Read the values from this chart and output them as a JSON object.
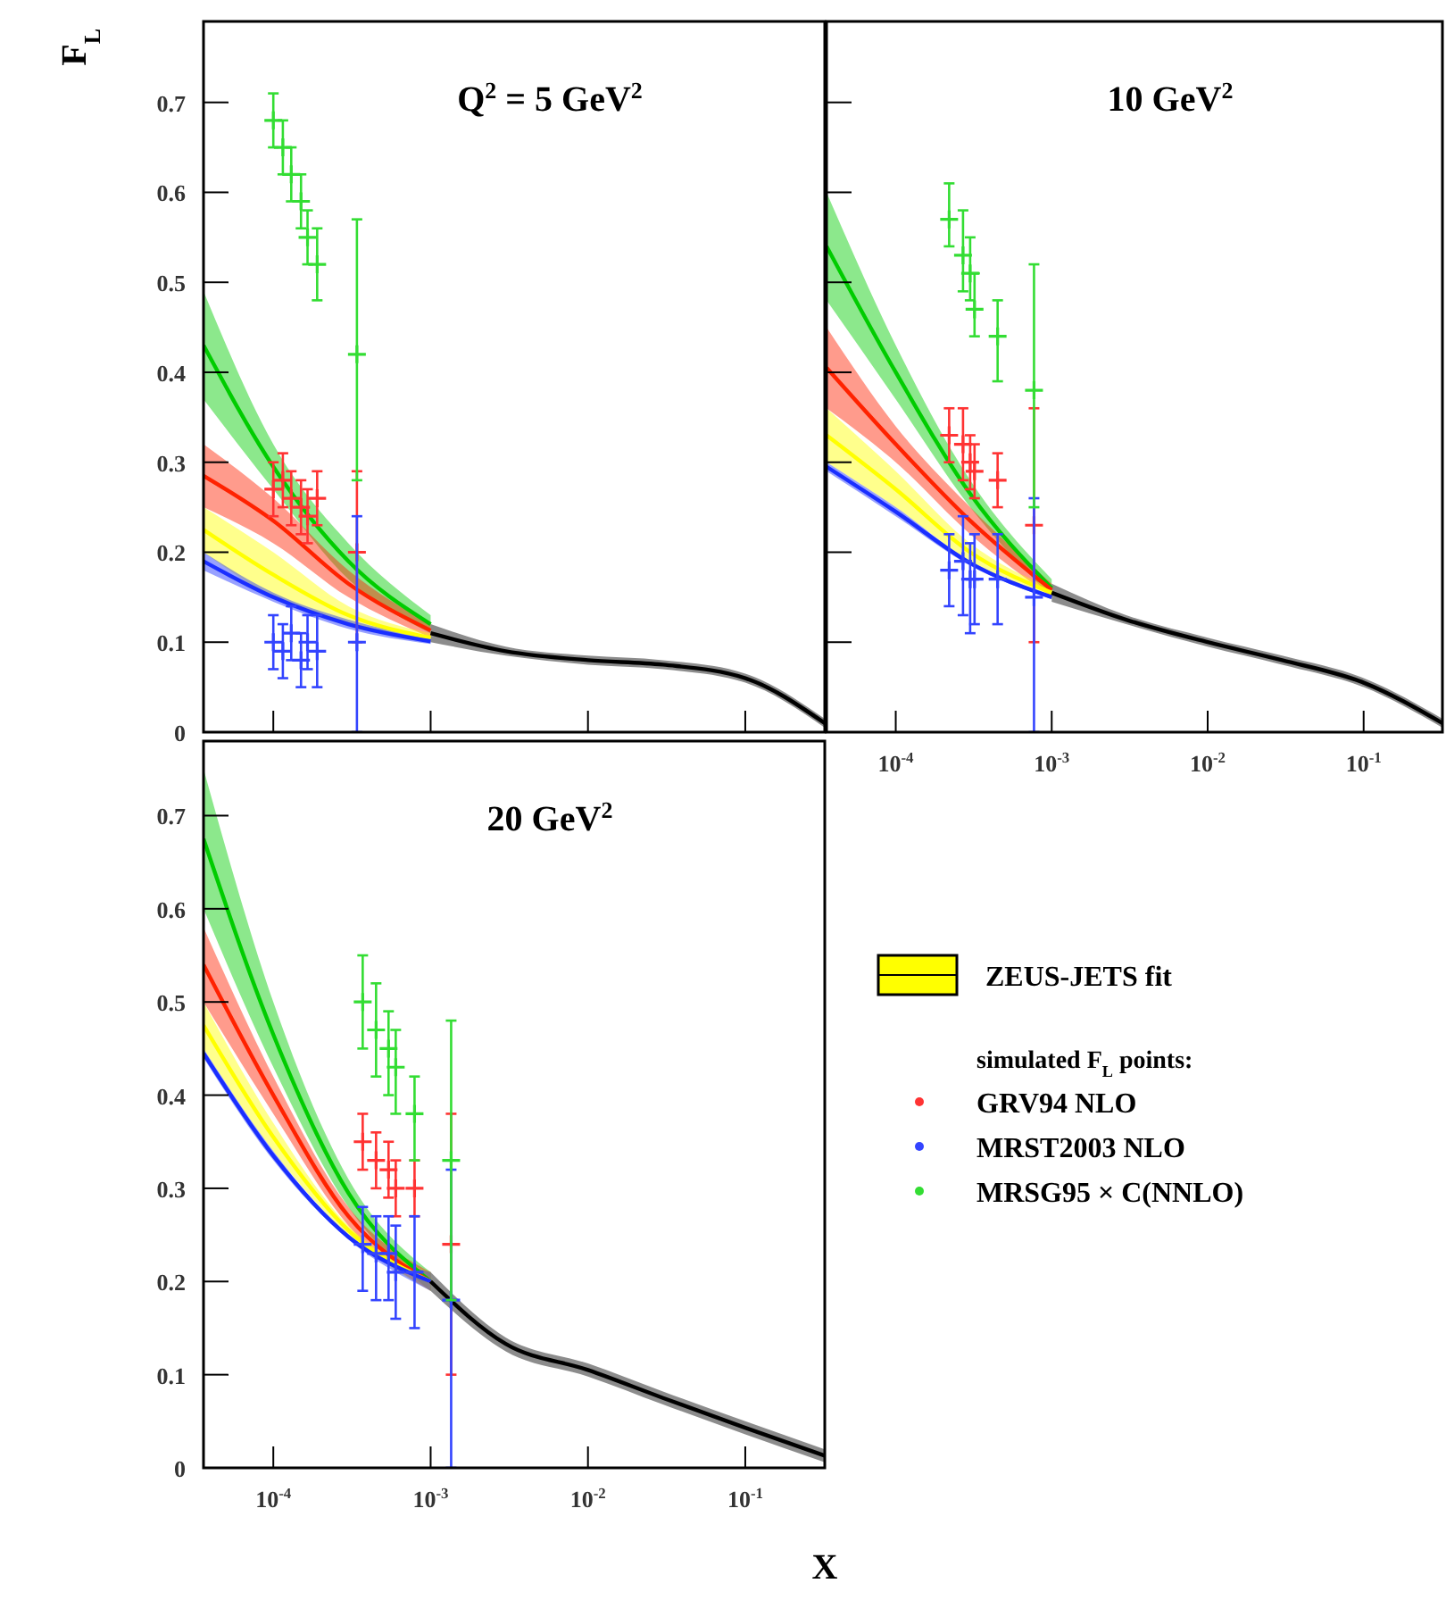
{
  "chart_data": [
    {
      "type": "line",
      "title": "Q$^{2}$ = 5 GeV$^{2}$",
      "ylabel": "F$_{L}$",
      "log": "x",
      "xlim": [
        3.6e-05,
        0.32
      ],
      "ylim": [
        0,
        0.79
      ],
      "xticks": [
        {
          "value": 0.0001,
          "label": null
        },
        {
          "value": 0.001,
          "label": null
        },
        {
          "value": 0.01,
          "label": null
        },
        {
          "value": 0.1,
          "label": null
        }
      ],
      "yticks": [
        0,
        0.1,
        0.2,
        0.3,
        0.4,
        0.5,
        0.6,
        0.7
      ],
      "tick_labels": "y",
      "series": [
        {
          "color": "#00cc00",
          "x": [
            3.6e-05,
            0.0001,
            0.0003,
            0.001
          ],
          "values": [
            0.43,
            0.295,
            0.19,
            0.12
          ],
          "lower": [
            0.37,
            0.27,
            0.17,
            0.11
          ],
          "upper": [
            0.49,
            0.32,
            0.21,
            0.13
          ]
        },
        {
          "color": "#ff2200",
          "x": [
            3.6e-05,
            0.0001,
            0.0003,
            0.001
          ],
          "values": [
            0.285,
            0.235,
            0.165,
            0.113
          ],
          "lower": [
            0.25,
            0.21,
            0.15,
            0.105
          ],
          "upper": [
            0.32,
            0.26,
            0.18,
            0.12
          ]
        },
        {
          "color": "#ffff00",
          "x": [
            3.6e-05,
            0.0001,
            0.0003,
            0.001
          ],
          "values": [
            0.225,
            0.175,
            0.13,
            0.105
          ],
          "lower": [
            0.2,
            0.15,
            0.12,
            0.1
          ],
          "upper": [
            0.25,
            0.2,
            0.14,
            0.11
          ]
        },
        {
          "color": "#1a2eff",
          "x": [
            3.6e-05,
            0.0001,
            0.0003,
            0.001
          ],
          "values": [
            0.19,
            0.15,
            0.12,
            0.101
          ],
          "lower": [
            0.18,
            0.145,
            0.115,
            0.098
          ],
          "upper": [
            0.2,
            0.155,
            0.125,
            0.104
          ]
        },
        {
          "color": "#000000",
          "x": [
            0.001,
            0.003,
            0.01,
            0.03,
            0.1,
            0.32
          ],
          "values": [
            0.11,
            0.09,
            0.08,
            0.075,
            0.06,
            0.01
          ],
          "lower": [
            0.1,
            0.085,
            0.075,
            0.07,
            0.055,
            0.005
          ],
          "upper": [
            0.12,
            0.095,
            0.085,
            0.08,
            0.065,
            0.015
          ]
        },
        {
          "type": "scatter",
          "marker": "cross",
          "color": "#ff3333",
          "x": [
            0.0001,
            0.000115,
            0.00013,
            0.00015,
            0.000165,
            0.00019,
            0.00034
          ],
          "values": [
            0.27,
            0.28,
            0.26,
            0.25,
            0.24,
            0.26,
            0.2
          ],
          "errors": [
            [
              0.24,
              0.3
            ],
            [
              0.25,
              0.31
            ],
            [
              0.23,
              0.29
            ],
            [
              0.22,
              0.28
            ],
            [
              0.21,
              0.27
            ],
            [
              0.23,
              0.29
            ],
            [
              0.1,
              0.29
            ]
          ]
        },
        {
          "type": "scatter",
          "marker": "cross",
          "color": "#3344ff",
          "x": [
            0.0001,
            0.000115,
            0.00013,
            0.00015,
            0.000165,
            0.00019,
            0.00034
          ],
          "values": [
            0.1,
            0.09,
            0.11,
            0.08,
            0.1,
            0.09,
            0.1
          ],
          "errors": [
            [
              0.07,
              0.13
            ],
            [
              0.06,
              0.12
            ],
            [
              0.08,
              0.14
            ],
            [
              0.05,
              0.11
            ],
            [
              0.07,
              0.13
            ],
            [
              0.05,
              0.13
            ],
            [
              0,
              0.24
            ]
          ]
        },
        {
          "type": "scatter",
          "marker": "cross",
          "color": "#33dd33",
          "x": [
            0.0001,
            0.000115,
            0.00013,
            0.00015,
            0.000165,
            0.00019,
            0.00034
          ],
          "values": [
            0.68,
            0.65,
            0.62,
            0.59,
            0.55,
            0.52,
            0.42
          ],
          "errors": [
            [
              0.65,
              0.71
            ],
            [
              0.62,
              0.68
            ],
            [
              0.59,
              0.65
            ],
            [
              0.56,
              0.62
            ],
            [
              0.52,
              0.58
            ],
            [
              0.48,
              0.56
            ],
            [
              0.28,
              0.57
            ]
          ]
        }
      ]
    },
    {
      "type": "line",
      "title": "10 GeV$^{2}$",
      "log": "x",
      "xlim": [
        3.6e-05,
        0.32
      ],
      "ylim": [
        0,
        0.79
      ],
      "xticks": [
        {
          "value": 0.0001,
          "label": "10$^{-4}$"
        },
        {
          "value": 0.001,
          "label": "10$^{-3}$"
        },
        {
          "value": 0.01,
          "label": "10$^{-2}$"
        },
        {
          "value": 0.1,
          "label": "10$^{-1}$"
        }
      ],
      "yticks": [
        0,
        0.1,
        0.2,
        0.3,
        0.4,
        0.5,
        0.6,
        0.7
      ],
      "tick_labels": "x",
      "series": [
        {
          "color": "#00cc00",
          "x": [
            3.6e-05,
            0.0001,
            0.0003,
            0.001
          ],
          "values": [
            0.54,
            0.4,
            0.265,
            0.16
          ],
          "lower": [
            0.48,
            0.37,
            0.25,
            0.15
          ],
          "upper": [
            0.6,
            0.43,
            0.28,
            0.17
          ]
        },
        {
          "color": "#ff2200",
          "x": [
            3.6e-05,
            0.0001,
            0.0003,
            0.001
          ],
          "values": [
            0.405,
            0.32,
            0.235,
            0.158
          ],
          "lower": [
            0.36,
            0.3,
            0.22,
            0.15
          ],
          "upper": [
            0.45,
            0.34,
            0.25,
            0.165
          ]
        },
        {
          "color": "#ffff00",
          "x": [
            3.6e-05,
            0.0001,
            0.0003,
            0.001
          ],
          "values": [
            0.33,
            0.27,
            0.2,
            0.155
          ],
          "lower": [
            0.3,
            0.25,
            0.19,
            0.15
          ],
          "upper": [
            0.36,
            0.29,
            0.21,
            0.16
          ]
        },
        {
          "color": "#1a2eff",
          "x": [
            3.6e-05,
            0.0001,
            0.0003,
            0.001
          ],
          "values": [
            0.295,
            0.245,
            0.188,
            0.15
          ],
          "lower": [
            0.29,
            0.24,
            0.185,
            0.148
          ],
          "upper": [
            0.3,
            0.25,
            0.19,
            0.152
          ]
        },
        {
          "color": "#000000",
          "x": [
            0.001,
            0.003,
            0.01,
            0.03,
            0.1,
            0.32
          ],
          "values": [
            0.155,
            0.125,
            0.1,
            0.08,
            0.055,
            0.01
          ],
          "lower": [
            0.145,
            0.12,
            0.095,
            0.075,
            0.05,
            0.005
          ],
          "upper": [
            0.165,
            0.13,
            0.105,
            0.085,
            0.06,
            0.015
          ]
        },
        {
          "type": "scatter",
          "marker": "cross",
          "color": "#ff3333",
          "x": [
            0.00022,
            0.00027,
            0.0003,
            0.00032,
            0.00045,
            0.00077
          ],
          "values": [
            0.33,
            0.32,
            0.3,
            0.29,
            0.28,
            0.23
          ],
          "errors": [
            [
              0.3,
              0.36
            ],
            [
              0.28,
              0.36
            ],
            [
              0.27,
              0.33
            ],
            [
              0.26,
              0.32
            ],
            [
              0.25,
              0.31
            ],
            [
              0.1,
              0.36
            ]
          ]
        },
        {
          "type": "scatter",
          "marker": "cross",
          "color": "#3344ff",
          "x": [
            0.00022,
            0.00027,
            0.0003,
            0.00032,
            0.00045,
            0.00077
          ],
          "values": [
            0.18,
            0.19,
            0.17,
            0.17,
            0.17,
            0.15
          ],
          "errors": [
            [
              0.14,
              0.22
            ],
            [
              0.13,
              0.24
            ],
            [
              0.11,
              0.21
            ],
            [
              0.12,
              0.22
            ],
            [
              0.12,
              0.22
            ],
            [
              0,
              0.26
            ]
          ]
        },
        {
          "type": "scatter",
          "marker": "cross",
          "color": "#33dd33",
          "x": [
            0.00022,
            0.00027,
            0.0003,
            0.00032,
            0.00045,
            0.00077
          ],
          "values": [
            0.57,
            0.53,
            0.51,
            0.47,
            0.44,
            0.38
          ],
          "errors": [
            [
              0.54,
              0.61
            ],
            [
              0.49,
              0.58
            ],
            [
              0.48,
              0.55
            ],
            [
              0.44,
              0.51
            ],
            [
              0.39,
              0.48
            ],
            [
              0.25,
              0.52
            ]
          ]
        }
      ]
    },
    {
      "type": "line",
      "title": "20 GeV$^{2}$",
      "xlabel": "X",
      "log": "x",
      "xlim": [
        3.6e-05,
        0.32
      ],
      "ylim": [
        0,
        0.78
      ],
      "xticks": [
        {
          "value": 0.0001,
          "label": "10$^{-4}$"
        },
        {
          "value": 0.001,
          "label": "10$^{-3}$"
        },
        {
          "value": 0.01,
          "label": "10$^{-2}$"
        },
        {
          "value": 0.1,
          "label": "10$^{-1}$"
        }
      ],
      "yticks": [
        0,
        0.1,
        0.2,
        0.3,
        0.4,
        0.5,
        0.6,
        0.7
      ],
      "legend": "right",
      "legend_title": "simulated F$_{L}$ points:",
      "series": [
        {
          "color": "#00cc00",
          "x": [
            3.6e-05,
            0.0001,
            0.0003,
            0.001
          ],
          "values": [
            0.675,
            0.465,
            0.295,
            0.2
          ],
          "lower": [
            0.6,
            0.43,
            0.28,
            0.19
          ],
          "upper": [
            0.75,
            0.5,
            0.31,
            0.21
          ]
        },
        {
          "color": "#ff2200",
          "x": [
            3.6e-05,
            0.0001,
            0.0003,
            0.001
          ],
          "values": [
            0.54,
            0.4,
            0.27,
            0.2
          ],
          "lower": [
            0.5,
            0.38,
            0.26,
            0.19
          ],
          "upper": [
            0.58,
            0.42,
            0.28,
            0.21
          ]
        },
        {
          "name": "ZEUS-JETS fit",
          "color": "#ffff00",
          "x": [
            3.6e-05,
            0.0001,
            0.0003,
            0.001
          ],
          "values": [
            0.475,
            0.355,
            0.255,
            0.2
          ],
          "lower": [
            0.45,
            0.34,
            0.25,
            0.19
          ],
          "upper": [
            0.5,
            0.37,
            0.26,
            0.21
          ]
        },
        {
          "color": "#1a2eff",
          "x": [
            3.6e-05,
            0.0001,
            0.0003,
            0.001
          ],
          "values": [
            0.445,
            0.335,
            0.248,
            0.2
          ],
          "lower": [
            0.44,
            0.33,
            0.245,
            0.19
          ],
          "upper": [
            0.45,
            0.34,
            0.25,
            0.21
          ]
        },
        {
          "color": "#000000",
          "x": [
            0.001,
            0.003,
            0.01,
            0.03,
            0.1,
            0.32
          ],
          "values": [
            0.2,
            0.133,
            0.105,
            0.075,
            0.043,
            0.013
          ],
          "lower": [
            0.19,
            0.125,
            0.098,
            0.068,
            0.036,
            0.006
          ],
          "upper": [
            0.21,
            0.14,
            0.112,
            0.082,
            0.05,
            0.02
          ]
        },
        {
          "type": "scatter",
          "marker": "cross",
          "name": "GRV94 NLO",
          "color": "#ff3333",
          "x": [
            0.00037,
            0.00045,
            0.00054,
            0.0006,
            0.00079,
            0.00135
          ],
          "values": [
            0.35,
            0.33,
            0.32,
            0.3,
            0.3,
            0.24
          ],
          "errors": [
            [
              0.32,
              0.38
            ],
            [
              0.3,
              0.36
            ],
            [
              0.29,
              0.35
            ],
            [
              0.27,
              0.33
            ],
            [
              0.27,
              0.33
            ],
            [
              0.1,
              0.38
            ]
          ]
        },
        {
          "type": "scatter",
          "marker": "cross",
          "name": "MRST2003 NLO",
          "color": "#3344ff",
          "x": [
            0.00037,
            0.00045,
            0.00054,
            0.0006,
            0.00079,
            0.00135
          ],
          "values": [
            0.24,
            0.23,
            0.23,
            0.21,
            0.21,
            0.18
          ],
          "errors": [
            [
              0.19,
              0.28
            ],
            [
              0.18,
              0.27
            ],
            [
              0.18,
              0.27
            ],
            [
              0.16,
              0.26
            ],
            [
              0.15,
              0.27
            ],
            [
              0,
              0.32
            ]
          ]
        },
        {
          "type": "scatter",
          "marker": "cross",
          "name": "MRSG95 × C(NNLO)",
          "color": "#33dd33",
          "x": [
            0.00037,
            0.00045,
            0.00054,
            0.0006,
            0.00079,
            0.00135
          ],
          "values": [
            0.5,
            0.47,
            0.45,
            0.43,
            0.38,
            0.33
          ],
          "errors": [
            [
              0.45,
              0.55
            ],
            [
              0.42,
              0.52
            ],
            [
              0.4,
              0.49
            ],
            [
              0.38,
              0.47
            ],
            [
              0.33,
              0.42
            ],
            [
              0.18,
              0.48
            ]
          ]
        }
      ]
    }
  ]
}
